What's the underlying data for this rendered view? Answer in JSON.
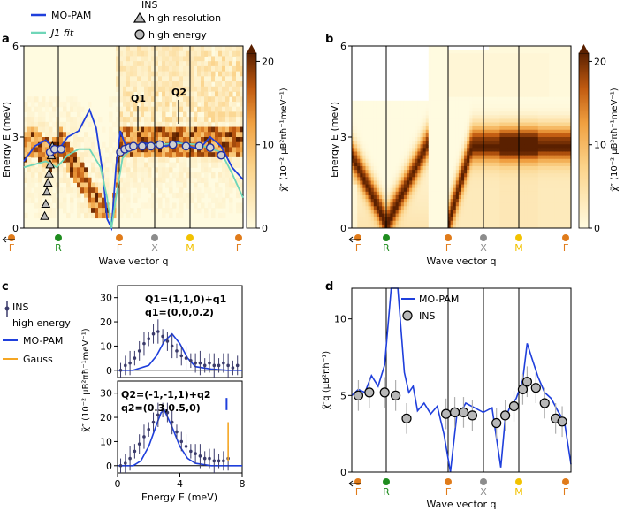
{
  "panel_labels": {
    "a": "a",
    "b": "b",
    "c": "c",
    "d": "d"
  },
  "colors": {
    "mopam": "#1f3fdc",
    "j1fit": "#6fd6b8",
    "ins": "#3b3b6b",
    "gauss": "#f5a623",
    "gamma": "#e07b1a",
    "R": "#1e8c1e",
    "X": "#8c8c8c",
    "M": "#f2c200",
    "heat_low": "#fffbe0",
    "heat_mid": "#f0a040",
    "heat_high": "#6e2c00"
  },
  "legend_a": {
    "mopam": "MO-PAM",
    "j1fit": "J1 fit",
    "ins_title": "INS",
    "high_res": "high resolution",
    "high_energy": "high energy"
  },
  "axis_labels": {
    "energy": "Energy E (meV)",
    "wavevector": "Wave vector q",
    "chi_ab": "χ̃″ (10⁻² μB²πħ⁻¹meV⁻¹)",
    "chi_c": "χ̃″ (10⁻² μB²πħ⁻¹meV⁻¹)",
    "chi_d": "χ̃″q (μB²πħ⁻¹)",
    "energy_c": "Energy E (meV)"
  },
  "q_ticks": [
    "Γ",
    "R",
    "Γ",
    "X",
    "M",
    "Γ"
  ],
  "annotations_a": {
    "q1": "Q1",
    "q2": "Q2"
  },
  "legend_c": {
    "ins_line1": "INS",
    "ins_line2": "high energy",
    "mopam": "MO-PAM",
    "gauss": "Gauss"
  },
  "panel_c_top": {
    "line1": "Q1=(1,1,0)+q1",
    "line2": "q1=(0,0,0.2)"
  },
  "panel_c_bottom": {
    "line1": "Q2=(-1,-1,1)+q2",
    "line2": "q2=(0.3,0.5,0)"
  },
  "legend_d": {
    "mopam": "MO-PAM",
    "ins": "INS"
  },
  "chart_data": [
    {
      "panel": "a",
      "type": "heatmap",
      "xlabel": "Wave vector q",
      "ylabel": "Energy E (meV)",
      "ylim": [
        0,
        6
      ],
      "yticks": [
        0,
        3,
        6
      ],
      "colorbar": {
        "ticks": [
          0,
          10,
          20
        ],
        "range": [
          0,
          21
        ],
        "label": "χ̃″ (10⁻² μB²πħ⁻¹meV⁻¹)"
      },
      "x_ticks": [
        "Γ",
        "R",
        "Γ",
        "X",
        "M",
        "Γ"
      ],
      "series": [
        {
          "name": "MO-PAM",
          "type": "line",
          "x": [
            0,
            0.05,
            0.1,
            0.15,
            0.2,
            0.25,
            0.3,
            0.33,
            0.36,
            0.38,
            0.4,
            0.42,
            0.44,
            0.47,
            0.5,
            0.55,
            0.6,
            0.65,
            0.7,
            0.75,
            0.8,
            0.85,
            0.9,
            0.95,
            1.0
          ],
          "y": [
            2.2,
            2.7,
            2.9,
            2.5,
            3.0,
            3.2,
            3.9,
            3.3,
            1.8,
            0.3,
            0.0,
            2.0,
            3.2,
            2.6,
            2.7,
            2.8,
            2.75,
            2.7,
            2.85,
            2.7,
            2.6,
            3.0,
            2.7,
            2.0,
            1.6
          ]
        },
        {
          "name": "J1 fit",
          "type": "line",
          "x": [
            0,
            0.05,
            0.1,
            0.15,
            0.2,
            0.25,
            0.3,
            0.35,
            0.38,
            0.4,
            0.42,
            0.45,
            0.5,
            0.6,
            0.7,
            0.8,
            0.9,
            0.95,
            1.0
          ],
          "y": [
            2.0,
            2.1,
            2.2,
            2.0,
            2.4,
            2.6,
            2.6,
            2.0,
            1.0,
            0.0,
            1.0,
            2.3,
            2.7,
            2.75,
            2.8,
            2.75,
            2.5,
            1.8,
            1.0
          ]
        },
        {
          "name": "high resolution",
          "type": "scatter",
          "x": [
            0.095,
            0.1,
            0.105,
            0.11,
            0.115,
            0.12,
            0.125,
            0.13
          ],
          "y": [
            0.4,
            0.8,
            1.2,
            1.5,
            1.8,
            2.1,
            2.4,
            2.7
          ]
        },
        {
          "name": "high energy",
          "type": "scatter",
          "x": [
            0.12,
            0.14,
            0.17,
            0.44,
            0.46,
            0.48,
            0.5,
            0.54,
            0.58,
            0.62,
            0.68,
            0.74,
            0.8,
            0.85,
            0.9
          ],
          "y": [
            2.5,
            2.6,
            2.6,
            2.5,
            2.6,
            2.65,
            2.7,
            2.7,
            2.7,
            2.75,
            2.75,
            2.7,
            2.7,
            2.65,
            2.4
          ]
        }
      ]
    },
    {
      "panel": "b",
      "type": "heatmap",
      "xlabel": "Wave vector q",
      "ylabel": "Energy E (meV)",
      "ylim": [
        0,
        6
      ],
      "yticks": [
        0,
        3,
        6
      ],
      "colorbar": {
        "ticks": [
          0,
          10,
          20
        ],
        "range": [
          0,
          21
        ],
        "label": "χ̃″ (10⁻² μB²πħ⁻¹meV⁻¹)"
      },
      "x_ticks": [
        "Γ",
        "R",
        "Γ",
        "X",
        "M",
        "Γ"
      ]
    },
    {
      "panel": "c-top",
      "type": "line",
      "xlim": [
        0,
        8
      ],
      "ylim": [
        -3,
        35
      ],
      "yticks": [
        0,
        10,
        20,
        30
      ],
      "series": [
        {
          "name": "INS",
          "type": "scatter",
          "x": [
            0.2,
            0.5,
            0.8,
            1.1,
            1.4,
            1.7,
            2.0,
            2.3,
            2.6,
            2.9,
            3.2,
            3.5,
            3.8,
            4.1,
            4.4,
            4.7,
            5.0,
            5.3,
            5.6,
            5.9,
            6.2,
            6.5,
            6.8,
            7.1,
            7.4,
            7.7
          ],
          "y": [
            0,
            2,
            3,
            5,
            8,
            11,
            13,
            15,
            16,
            14,
            12,
            10,
            8,
            6,
            5,
            4,
            3,
            3,
            2,
            3,
            2,
            2,
            3,
            2,
            1,
            2
          ]
        },
        {
          "name": "MO-PAM",
          "type": "line",
          "x": [
            0,
            1,
            2,
            2.5,
            3,
            3.5,
            4,
            4.5,
            5,
            6,
            7,
            8
          ],
          "y": [
            0,
            0,
            2,
            6,
            12,
            15,
            11,
            5,
            1.5,
            0.5,
            0,
            0
          ]
        }
      ]
    },
    {
      "panel": "c-bottom",
      "type": "line",
      "xlabel": "Energy E (meV)",
      "xlim": [
        0,
        8
      ],
      "xticks": [
        0,
        4,
        8
      ],
      "ylim": [
        -3,
        35
      ],
      "yticks": [
        0,
        10,
        20,
        30
      ],
      "series": [
        {
          "name": "INS",
          "type": "scatter",
          "x": [
            0.2,
            0.5,
            0.8,
            1.1,
            1.4,
            1.7,
            2.0,
            2.3,
            2.6,
            2.9,
            3.2,
            3.5,
            3.8,
            4.1,
            4.4,
            4.7,
            5.0,
            5.3,
            5.6,
            5.9,
            6.2,
            6.5,
            6.8,
            7.1
          ],
          "y": [
            0,
            1,
            3,
            6,
            9,
            12,
            15,
            18,
            21,
            23,
            22,
            18,
            14,
            10,
            8,
            6,
            5,
            4,
            3,
            3,
            2,
            2,
            2,
            3
          ]
        },
        {
          "name": "MO-PAM",
          "type": "line",
          "x": [
            0,
            1,
            1.5,
            2,
            2.5,
            2.8,
            3,
            3.5,
            4,
            4.5,
            5,
            6,
            7,
            8
          ],
          "y": [
            0,
            0,
            2,
            8,
            17,
            22,
            23,
            16,
            8,
            3,
            1,
            0,
            0,
            0
          ]
        },
        {
          "name": "Gauss",
          "type": "scatter",
          "x": [
            7.1
          ],
          "y": [
            10
          ]
        }
      ]
    },
    {
      "panel": "d",
      "type": "line",
      "xlabel": "Wave vector q",
      "ylabel": "χ̃″q (μB²πħ⁻¹)",
      "ylim": [
        0,
        12
      ],
      "yticks": [
        0,
        5,
        10
      ],
      "x_ticks": [
        "Γ",
        "R",
        "Γ",
        "X",
        "M",
        "Γ"
      ],
      "series": [
        {
          "name": "MO-PAM",
          "type": "line",
          "x": [
            0,
            0.03,
            0.06,
            0.09,
            0.12,
            0.15,
            0.18,
            0.21,
            0.24,
            0.26,
            0.28,
            0.3,
            0.33,
            0.36,
            0.39,
            0.42,
            0.45,
            0.48,
            0.5,
            0.52,
            0.56,
            0.6,
            0.64,
            0.68,
            0.7,
            0.72,
            0.75,
            0.78,
            0.8,
            0.82,
            0.85,
            0.88,
            0.91,
            0.94,
            0.97,
            1.0
          ],
          "y": [
            5.0,
            5.4,
            5.2,
            6.3,
            5.6,
            7.0,
            12,
            15,
            6.5,
            5.2,
            5.6,
            4.0,
            4.5,
            3.8,
            4.3,
            2.5,
            0.0,
            3.8,
            4.0,
            4.5,
            4.2,
            3.9,
            4.2,
            0.3,
            3.5,
            4.2,
            4.8,
            6.0,
            8.4,
            7.5,
            6.2,
            5.2,
            4.8,
            4.0,
            3.3,
            0.5
          ]
        },
        {
          "name": "INS",
          "type": "scatter",
          "x": [
            0.03,
            0.08,
            0.15,
            0.2,
            0.25,
            0.43,
            0.47,
            0.51,
            0.55,
            0.66,
            0.7,
            0.74,
            0.78,
            0.8,
            0.84,
            0.88,
            0.93,
            0.96
          ],
          "y": [
            5.0,
            5.2,
            5.2,
            5.0,
            3.5,
            3.8,
            3.9,
            3.9,
            3.7,
            3.2,
            3.7,
            4.3,
            5.4,
            5.9,
            5.5,
            4.5,
            3.5,
            3.3
          ]
        }
      ]
    }
  ]
}
